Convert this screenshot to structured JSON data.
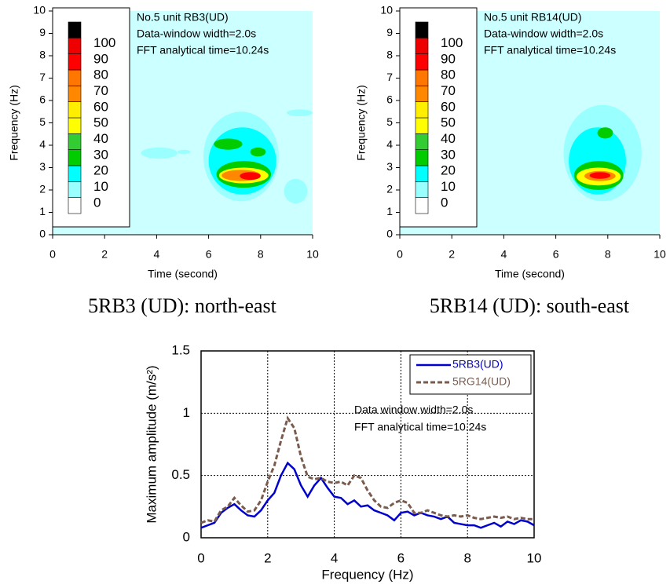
{
  "chart_data": [
    {
      "type": "contour",
      "xlabel": "Time (second)",
      "ylabel": "Frequency (Hz)",
      "annotation": [
        "No.5 unit RB3(UD)",
        "Data-window width=2.0s",
        "FFT analytical time=10.24s"
      ],
      "caption": "5RB3 (UD): north-east",
      "xlim": [
        0,
        10
      ],
      "ylim": [
        0,
        10
      ],
      "xticks": [
        0,
        2,
        4,
        6,
        8,
        10
      ],
      "yticks": [
        0,
        1,
        2,
        3,
        4,
        5,
        6,
        7,
        8,
        9,
        10
      ],
      "background": "#ccffff",
      "colorbar": {
        "levels": [
          0,
          10,
          20,
          30,
          40,
          50,
          60,
          70,
          80,
          90,
          100
        ],
        "colors": [
          "#ffffff",
          "#99ffff",
          "#00ffff",
          "#00cc00",
          "#33cc33",
          "#ffff00",
          "#ffee00",
          "#ff8800",
          "#ff7700",
          "#ff0000",
          "#ee0000"
        ],
        "over_color": "#000000"
      },
      "features": [
        {
          "x": [
            5.8,
            8.7
          ],
          "y": [
            1.5,
            5.5
          ],
          "level": 10
        },
        {
          "x": [
            3.4,
            4.8
          ],
          "y": [
            3.4,
            3.9
          ],
          "level": 10
        },
        {
          "x": [
            4.8,
            5.3
          ],
          "y": [
            3.6,
            3.8
          ],
          "level": 10
        },
        {
          "x": [
            8.9,
            9.8
          ],
          "y": [
            1.4,
            2.5
          ],
          "level": 10
        },
        {
          "x": [
            9.0,
            10.0
          ],
          "y": [
            5.3,
            5.6
          ],
          "level": 10
        },
        {
          "x": [
            6.0,
            8.6
          ],
          "y": [
            1.8,
            4.8
          ],
          "level": 20
        },
        {
          "x": [
            6.3,
            8.4
          ],
          "y": [
            2.1,
            3.3
          ],
          "level": 30
        },
        {
          "x": [
            6.2,
            7.3
          ],
          "y": [
            3.8,
            4.3
          ],
          "level": 30
        },
        {
          "x": [
            7.6,
            8.2
          ],
          "y": [
            3.5,
            3.9
          ],
          "level": 30
        },
        {
          "x": [
            6.4,
            8.3
          ],
          "y": [
            2.3,
            3.0
          ],
          "level": 50
        },
        {
          "x": [
            6.5,
            8.0
          ],
          "y": [
            2.4,
            2.9
          ],
          "level": 70
        },
        {
          "x": [
            7.2,
            8.0
          ],
          "y": [
            2.45,
            2.8
          ],
          "level": 90
        }
      ]
    },
    {
      "type": "contour",
      "xlabel": "Time (second)",
      "ylabel": "Frequency (Hz)",
      "annotation": [
        "No.5 unit RB14(UD)",
        "Data-window width=2.0s",
        "FFT analytical time=10.24s"
      ],
      "caption": "5RB14 (UD): south-east",
      "xlim": [
        0,
        10
      ],
      "ylim": [
        0,
        10
      ],
      "xticks": [
        0,
        2,
        4,
        6,
        8,
        10
      ],
      "yticks": [
        0,
        1,
        2,
        3,
        4,
        5,
        6,
        7,
        8,
        9,
        10
      ],
      "background": "#ccffff",
      "colorbar": {
        "levels": [
          0,
          10,
          20,
          30,
          40,
          50,
          60,
          70,
          80,
          90,
          100
        ],
        "colors": [
          "#ffffff",
          "#99ffff",
          "#00ffff",
          "#00cc00",
          "#33cc33",
          "#ffff00",
          "#ffee00",
          "#ff8800",
          "#ff7700",
          "#ff0000",
          "#ee0000"
        ],
        "over_color": "#000000"
      },
      "features": [
        {
          "x": [
            6.3,
            9.3
          ],
          "y": [
            1.5,
            5.8
          ],
          "level": 10
        },
        {
          "x": [
            6.5,
            8.7
          ],
          "y": [
            1.8,
            4.8
          ],
          "level": 20
        },
        {
          "x": [
            6.7,
            8.6
          ],
          "y": [
            2.0,
            3.3
          ],
          "level": 30
        },
        {
          "x": [
            7.6,
            8.2
          ],
          "y": [
            4.3,
            4.8
          ],
          "level": 30
        },
        {
          "x": [
            6.8,
            8.5
          ],
          "y": [
            2.2,
            3.0
          ],
          "level": 50
        },
        {
          "x": [
            7.1,
            8.3
          ],
          "y": [
            2.4,
            2.85
          ],
          "level": 70
        },
        {
          "x": [
            7.3,
            8.1
          ],
          "y": [
            2.5,
            2.8
          ],
          "level": 90
        }
      ]
    },
    {
      "type": "line",
      "xlabel": "Frequency (Hz)",
      "ylabel": "Maximum amplitude (m/s²)",
      "annotation": [
        "Data window width=2.0s",
        "FFT analytical time=10.24s"
      ],
      "xlim": [
        0,
        10
      ],
      "ylim": [
        0,
        1.5
      ],
      "xticks": [
        0,
        2,
        4,
        6,
        8,
        10
      ],
      "yticks": [
        0,
        0.5,
        1,
        1.5
      ],
      "grid": true,
      "legend": "upper-right",
      "x": [
        0,
        0.2,
        0.4,
        0.6,
        0.8,
        1.0,
        1.2,
        1.4,
        1.6,
        1.8,
        2.0,
        2.2,
        2.4,
        2.6,
        2.8,
        3.0,
        3.2,
        3.4,
        3.6,
        3.8,
        4.0,
        4.2,
        4.4,
        4.6,
        4.8,
        5.0,
        5.2,
        5.4,
        5.6,
        5.8,
        6.0,
        6.2,
        6.4,
        6.6,
        6.8,
        7.0,
        7.2,
        7.4,
        7.6,
        7.8,
        8.0,
        8.2,
        8.4,
        8.6,
        8.8,
        9.0,
        9.2,
        9.4,
        9.6,
        9.8,
        10
      ],
      "series": [
        {
          "name": "5RB3(UD)",
          "color": "#0000cc",
          "linestyle": "solid",
          "values": [
            0.08,
            0.1,
            0.12,
            0.2,
            0.24,
            0.27,
            0.22,
            0.18,
            0.17,
            0.22,
            0.3,
            0.36,
            0.5,
            0.6,
            0.55,
            0.42,
            0.33,
            0.42,
            0.48,
            0.4,
            0.33,
            0.32,
            0.27,
            0.3,
            0.25,
            0.26,
            0.22,
            0.2,
            0.18,
            0.14,
            0.2,
            0.21,
            0.18,
            0.2,
            0.18,
            0.17,
            0.15,
            0.17,
            0.12,
            0.11,
            0.1,
            0.1,
            0.08,
            0.1,
            0.12,
            0.09,
            0.13,
            0.11,
            0.14,
            0.13,
            0.1
          ]
        },
        {
          "name": "5RG14(UD)",
          "color": "#7a5c4e",
          "linestyle": "dashed",
          "values": [
            0.12,
            0.14,
            0.13,
            0.22,
            0.25,
            0.32,
            0.26,
            0.21,
            0.22,
            0.3,
            0.45,
            0.58,
            0.78,
            0.96,
            0.88,
            0.65,
            0.49,
            0.47,
            0.48,
            0.45,
            0.44,
            0.45,
            0.42,
            0.5,
            0.48,
            0.38,
            0.3,
            0.25,
            0.24,
            0.28,
            0.3,
            0.28,
            0.2,
            0.2,
            0.22,
            0.2,
            0.18,
            0.17,
            0.18,
            0.17,
            0.18,
            0.16,
            0.15,
            0.16,
            0.17,
            0.16,
            0.17,
            0.15,
            0.16,
            0.15,
            0.15
          ]
        }
      ]
    }
  ]
}
